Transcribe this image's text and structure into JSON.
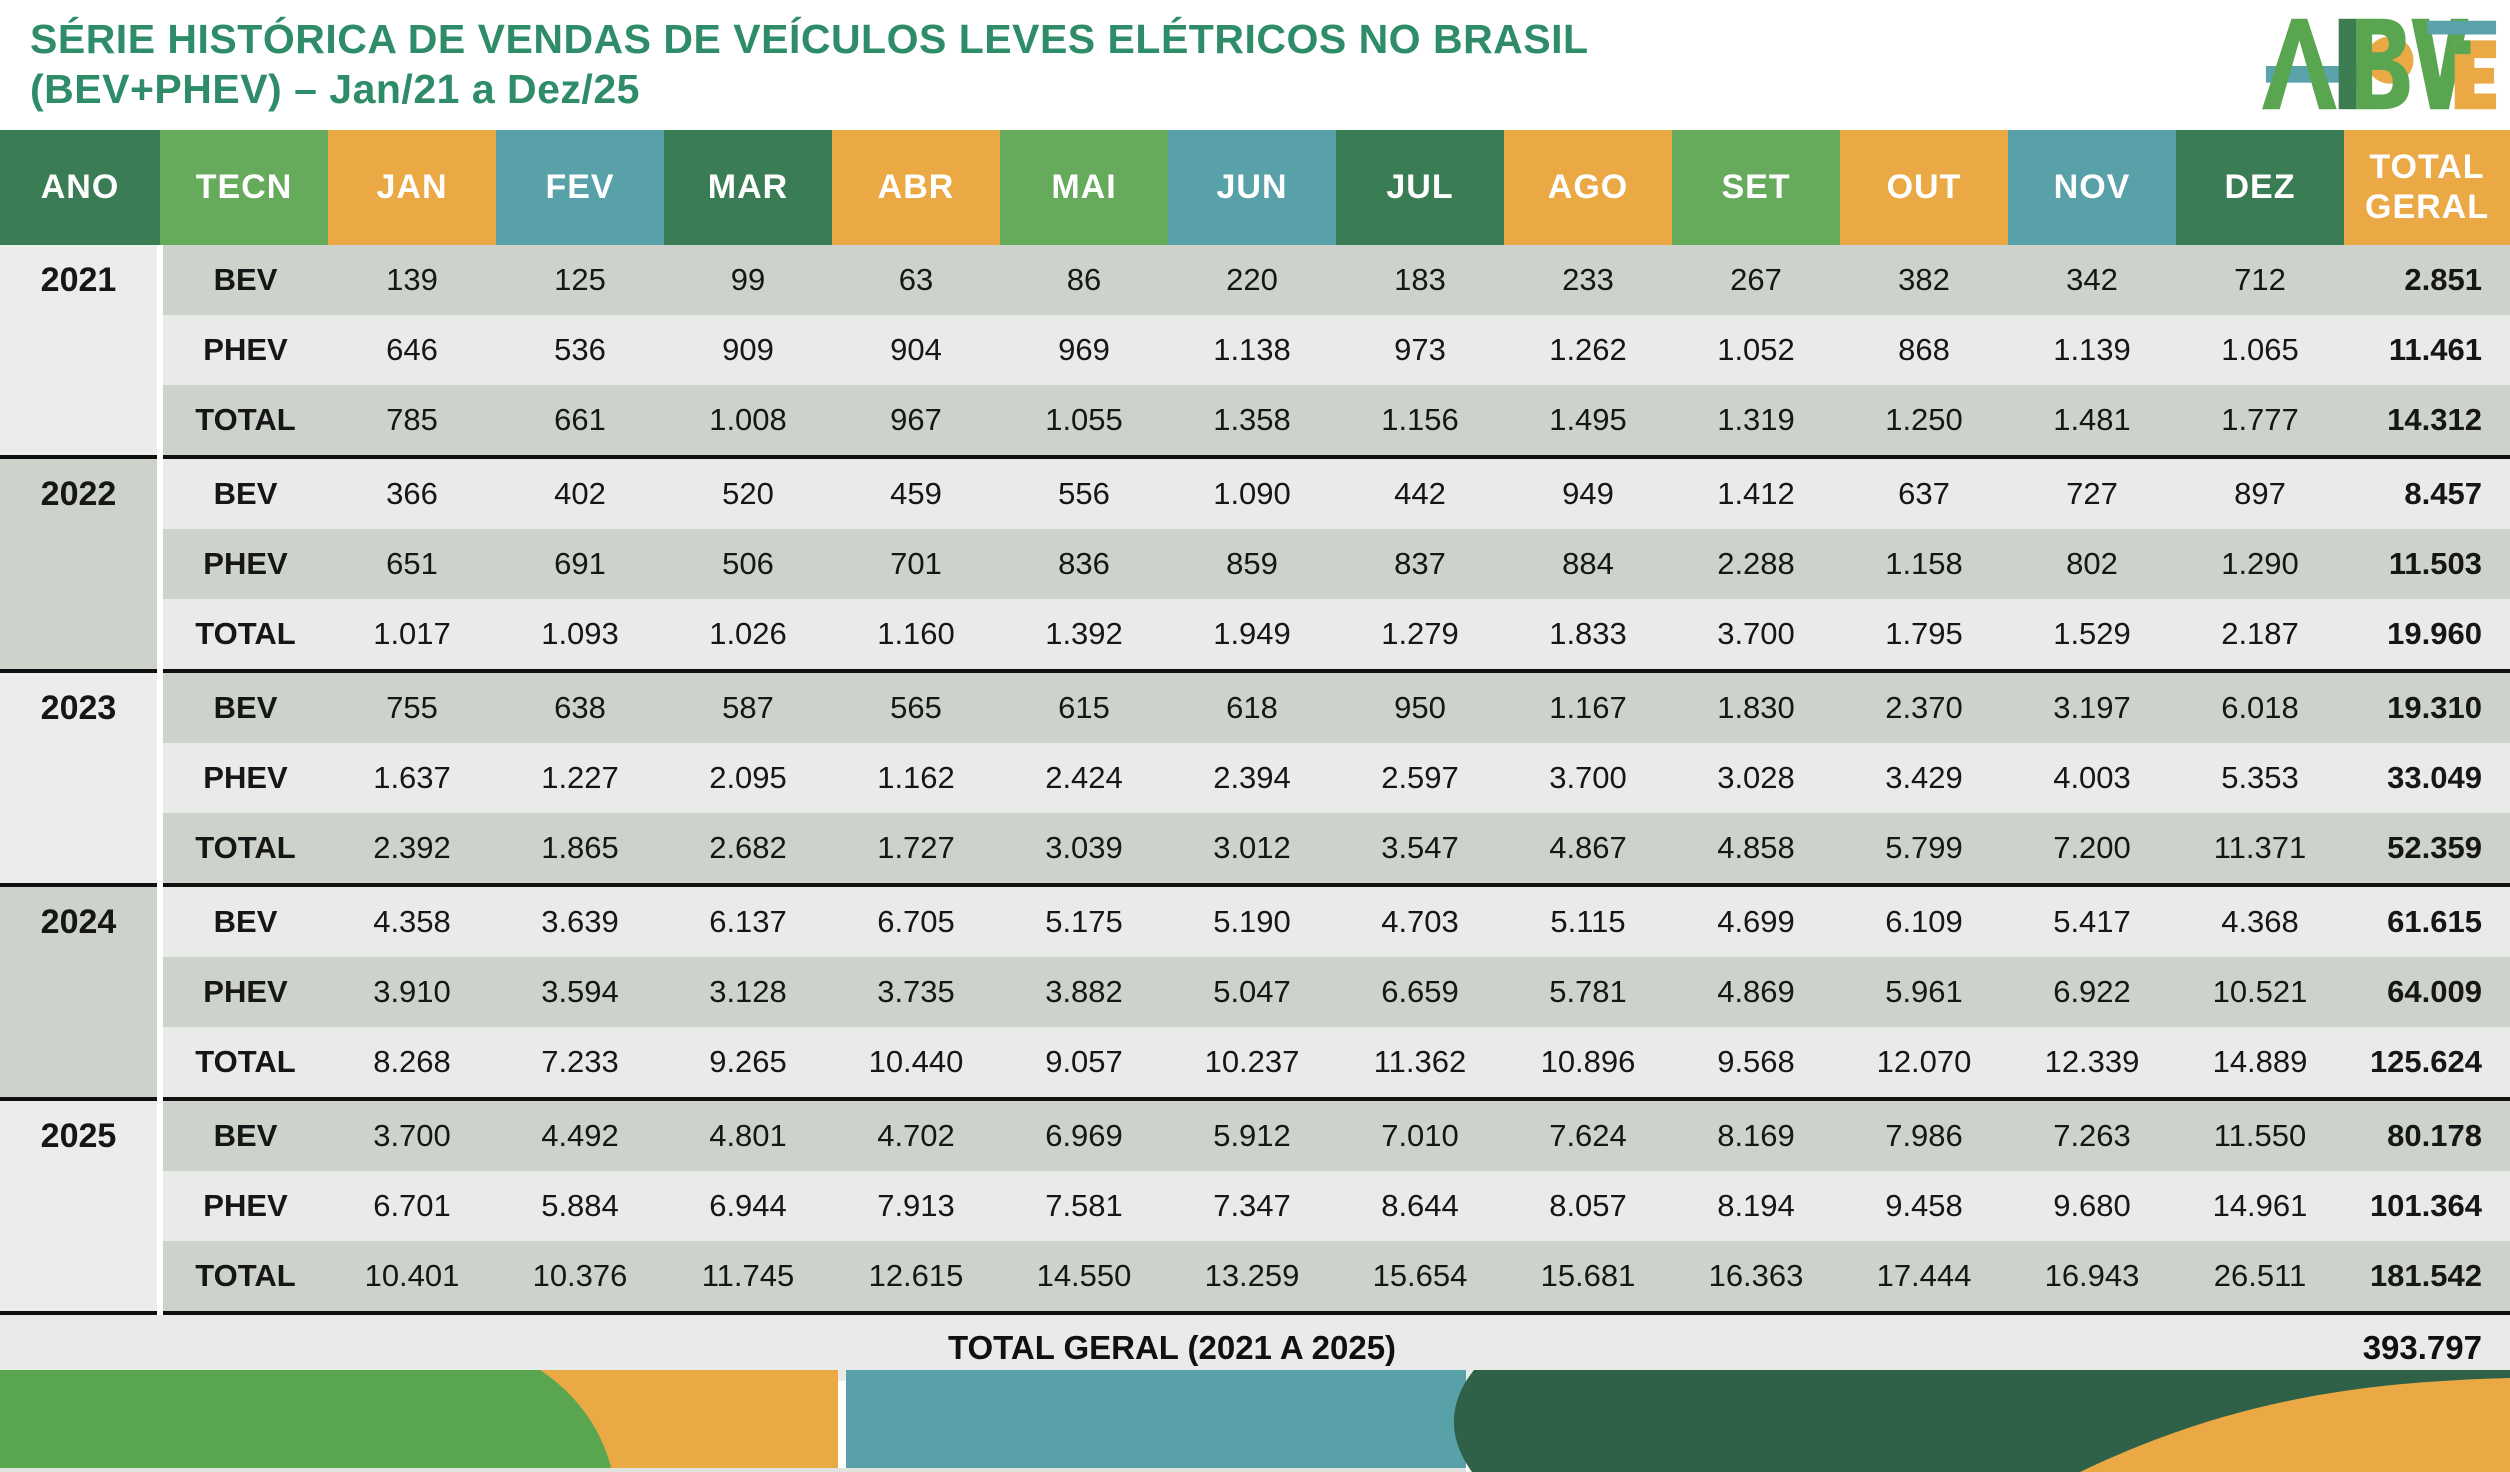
{
  "title": {
    "line1": "SÉRIE HISTÓRICA DE VENDAS DE VEÍCULOS LEVES ELÉTRICOS NO BRASIL",
    "line2": "(BEV+PHEV) – Jan/21 a Dez/25"
  },
  "logo": {
    "alt": "ABVE"
  },
  "palette": {
    "title_green": "#2e8c68",
    "header_dark_green": "#3a7d54",
    "header_light_green": "#66aa5b",
    "header_orange": "#eaa945",
    "header_teal": "#58a1a8",
    "row_stripe_dark": "#cdd3cb",
    "row_stripe_light": "#e9ebe8",
    "deco_dark_green": "#2e6148",
    "deco_light_green": "#5aa550"
  },
  "footer": {
    "label": "TOTAL GERAL (2021 A 2025)",
    "value": "393.797"
  },
  "chart_data": {
    "type": "table",
    "title": "SÉRIE HISTÓRICA DE VENDAS DE VEÍCULOS LEVES ELÉTRICOS NO BRASIL (BEV+PHEV) – Jan/21 a Dez/25",
    "columns": [
      "ANO",
      "TECN",
      "JAN",
      "FEV",
      "MAR",
      "ABR",
      "MAI",
      "JUN",
      "JUL",
      "AGO",
      "SET",
      "OUT",
      "NOV",
      "DEZ",
      "TOTAL GERAL"
    ],
    "header_styles": [
      "dark",
      "light",
      "orange",
      "teal",
      "dark",
      "orange",
      "light",
      "teal",
      "dark",
      "orange",
      "light",
      "orange",
      "teal",
      "dark",
      "orange"
    ],
    "number_format": "thousands separated by dots (pt-BR)",
    "years": [
      {
        "year": 2021,
        "series": [
          {
            "name": "BEV",
            "monthly": [
              139,
              125,
              99,
              63,
              86,
              220,
              183,
              233,
              267,
              382,
              342,
              712
            ],
            "total": 2851
          },
          {
            "name": "PHEV",
            "monthly": [
              646,
              536,
              909,
              904,
              969,
              1138,
              973,
              1262,
              1052,
              868,
              1139,
              1065
            ],
            "total": 11461
          },
          {
            "name": "TOTAL",
            "monthly": [
              785,
              661,
              1008,
              967,
              1055,
              1358,
              1156,
              1495,
              1319,
              1250,
              1481,
              1777
            ],
            "total": 14312
          }
        ]
      },
      {
        "year": 2022,
        "series": [
          {
            "name": "BEV",
            "monthly": [
              366,
              402,
              520,
              459,
              556,
              1090,
              442,
              949,
              1412,
              637,
              727,
              897
            ],
            "total": 8457
          },
          {
            "name": "PHEV",
            "monthly": [
              651,
              691,
              506,
              701,
              836,
              859,
              837,
              884,
              2288,
              1158,
              802,
              1290
            ],
            "total": 11503
          },
          {
            "name": "TOTAL",
            "monthly": [
              1017,
              1093,
              1026,
              1160,
              1392,
              1949,
              1279,
              1833,
              3700,
              1795,
              1529,
              2187
            ],
            "total": 19960
          }
        ]
      },
      {
        "year": 2023,
        "series": [
          {
            "name": "BEV",
            "monthly": [
              755,
              638,
              587,
              565,
              615,
              618,
              950,
              1167,
              1830,
              2370,
              3197,
              6018
            ],
            "total": 19310
          },
          {
            "name": "PHEV",
            "monthly": [
              1637,
              1227,
              2095,
              1162,
              2424,
              2394,
              2597,
              3700,
              3028,
              3429,
              4003,
              5353
            ],
            "total": 33049
          },
          {
            "name": "TOTAL",
            "monthly": [
              2392,
              1865,
              2682,
              1727,
              3039,
              3012,
              3547,
              4867,
              4858,
              5799,
              7200,
              11371
            ],
            "total": 52359
          }
        ]
      },
      {
        "year": 2024,
        "series": [
          {
            "name": "BEV",
            "monthly": [
              4358,
              3639,
              6137,
              6705,
              5175,
              5190,
              4703,
              5115,
              4699,
              6109,
              5417,
              4368
            ],
            "total": 61615
          },
          {
            "name": "PHEV",
            "monthly": [
              3910,
              3594,
              3128,
              3735,
              3882,
              5047,
              6659,
              5781,
              4869,
              5961,
              6922,
              10521
            ],
            "total": 64009
          },
          {
            "name": "TOTAL",
            "monthly": [
              8268,
              7233,
              9265,
              10440,
              9057,
              10237,
              11362,
              10896,
              9568,
              12070,
              12339,
              14889
            ],
            "total": 125624
          }
        ]
      },
      {
        "year": 2025,
        "series": [
          {
            "name": "BEV",
            "monthly": [
              3700,
              4492,
              4801,
              4702,
              6969,
              5912,
              7010,
              7624,
              8169,
              7986,
              7263,
              11550
            ],
            "total": 80178
          },
          {
            "name": "PHEV",
            "monthly": [
              6701,
              5884,
              6944,
              7913,
              7581,
              7347,
              8644,
              8057,
              8194,
              9458,
              9680,
              14961
            ],
            "total": 101364
          },
          {
            "name": "TOTAL",
            "monthly": [
              10401,
              10376,
              11745,
              12615,
              14550,
              13259,
              15654,
              15681,
              16363,
              17444,
              16943,
              26511
            ],
            "total": 181542
          }
        ]
      }
    ],
    "grand_total": 393797
  }
}
